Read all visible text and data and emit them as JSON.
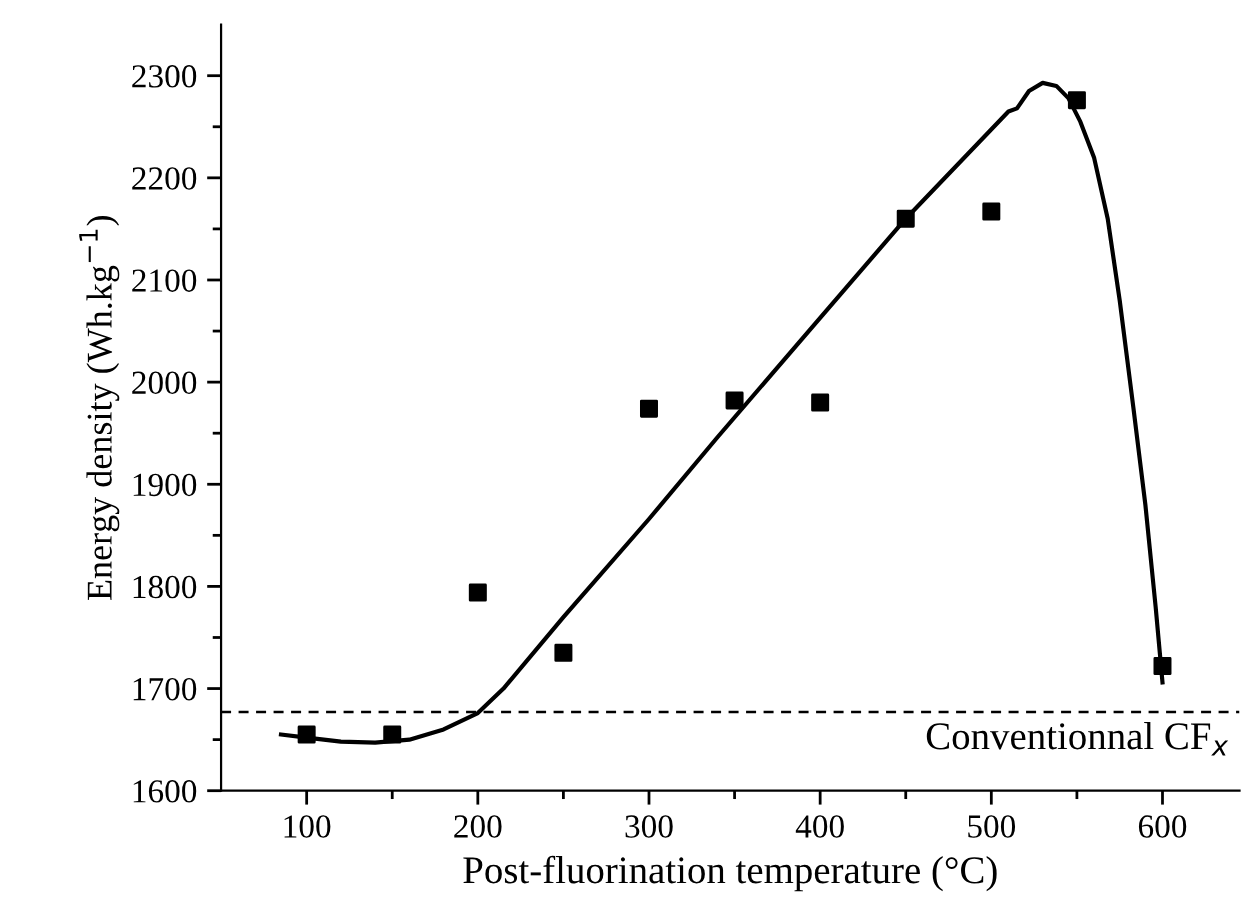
{
  "chart_data": {
    "type": "scatter",
    "xlabel": "Post-fluorination temperature (°C)",
    "ylabel": "Energy density (Wh.kg$^{−1}$)",
    "x": [
      100,
      150,
      200,
      250,
      300,
      350,
      400,
      450,
      500,
      550,
      600
    ],
    "series": [
      {
        "color": "#000000",
        "marker": "square",
        "values": [
          1655,
          1655,
          1794,
          1735,
          1974,
          1982,
          1980,
          2160,
          2167,
          2276,
          1722
        ]
      },
      {
        "type": "line",
        "color": "#000000",
        "line_style": "solid",
        "x": [
          85,
          100,
          120,
          140,
          160,
          180,
          200,
          215,
          250,
          300,
          340,
          400,
          450,
          510,
          515,
          522,
          530,
          538,
          545,
          552,
          560,
          568,
          575,
          583,
          590,
          596,
          600
        ],
        "values": [
          1655,
          1652,
          1648,
          1647,
          1650,
          1660,
          1676,
          1700,
          1770,
          1866,
          1946,
          2063,
          2160,
          2265,
          2268,
          2285,
          2293,
          2290,
          2278,
          2255,
          2220,
          2160,
          2080,
          1975,
          1880,
          1780,
          1706
        ]
      }
    ],
    "ref_lines": [
      {
        "axis": "y",
        "value": 1677,
        "label": "Conventionnal CF$_{x}$",
        "color": "#000000",
        "line_style": "dashed"
      }
    ],
    "xlim": [
      50,
      645
    ],
    "ylim": [
      1600,
      2350
    ],
    "xticks": [
      100,
      {
        "value": 150,
        "label": null
      },
      200,
      {
        "value": 250,
        "label": null
      },
      300,
      {
        "value": 350,
        "label": null
      },
      400,
      {
        "value": 450,
        "label": null
      },
      500,
      {
        "value": 550,
        "label": null
      },
      600
    ],
    "yticks": [
      1600,
      {
        "value": 1650,
        "label": null
      },
      1700,
      {
        "value": 1750,
        "label": null
      },
      1800,
      {
        "value": 1850,
        "label": null
      },
      1900,
      {
        "value": 1950,
        "label": null
      },
      2000,
      {
        "value": 2050,
        "label": null
      },
      2100,
      {
        "value": 2150,
        "label": null
      },
      2200,
      {
        "value": 2250,
        "label": null
      },
      2300
    ],
    "grid": false,
    "legend": false
  }
}
